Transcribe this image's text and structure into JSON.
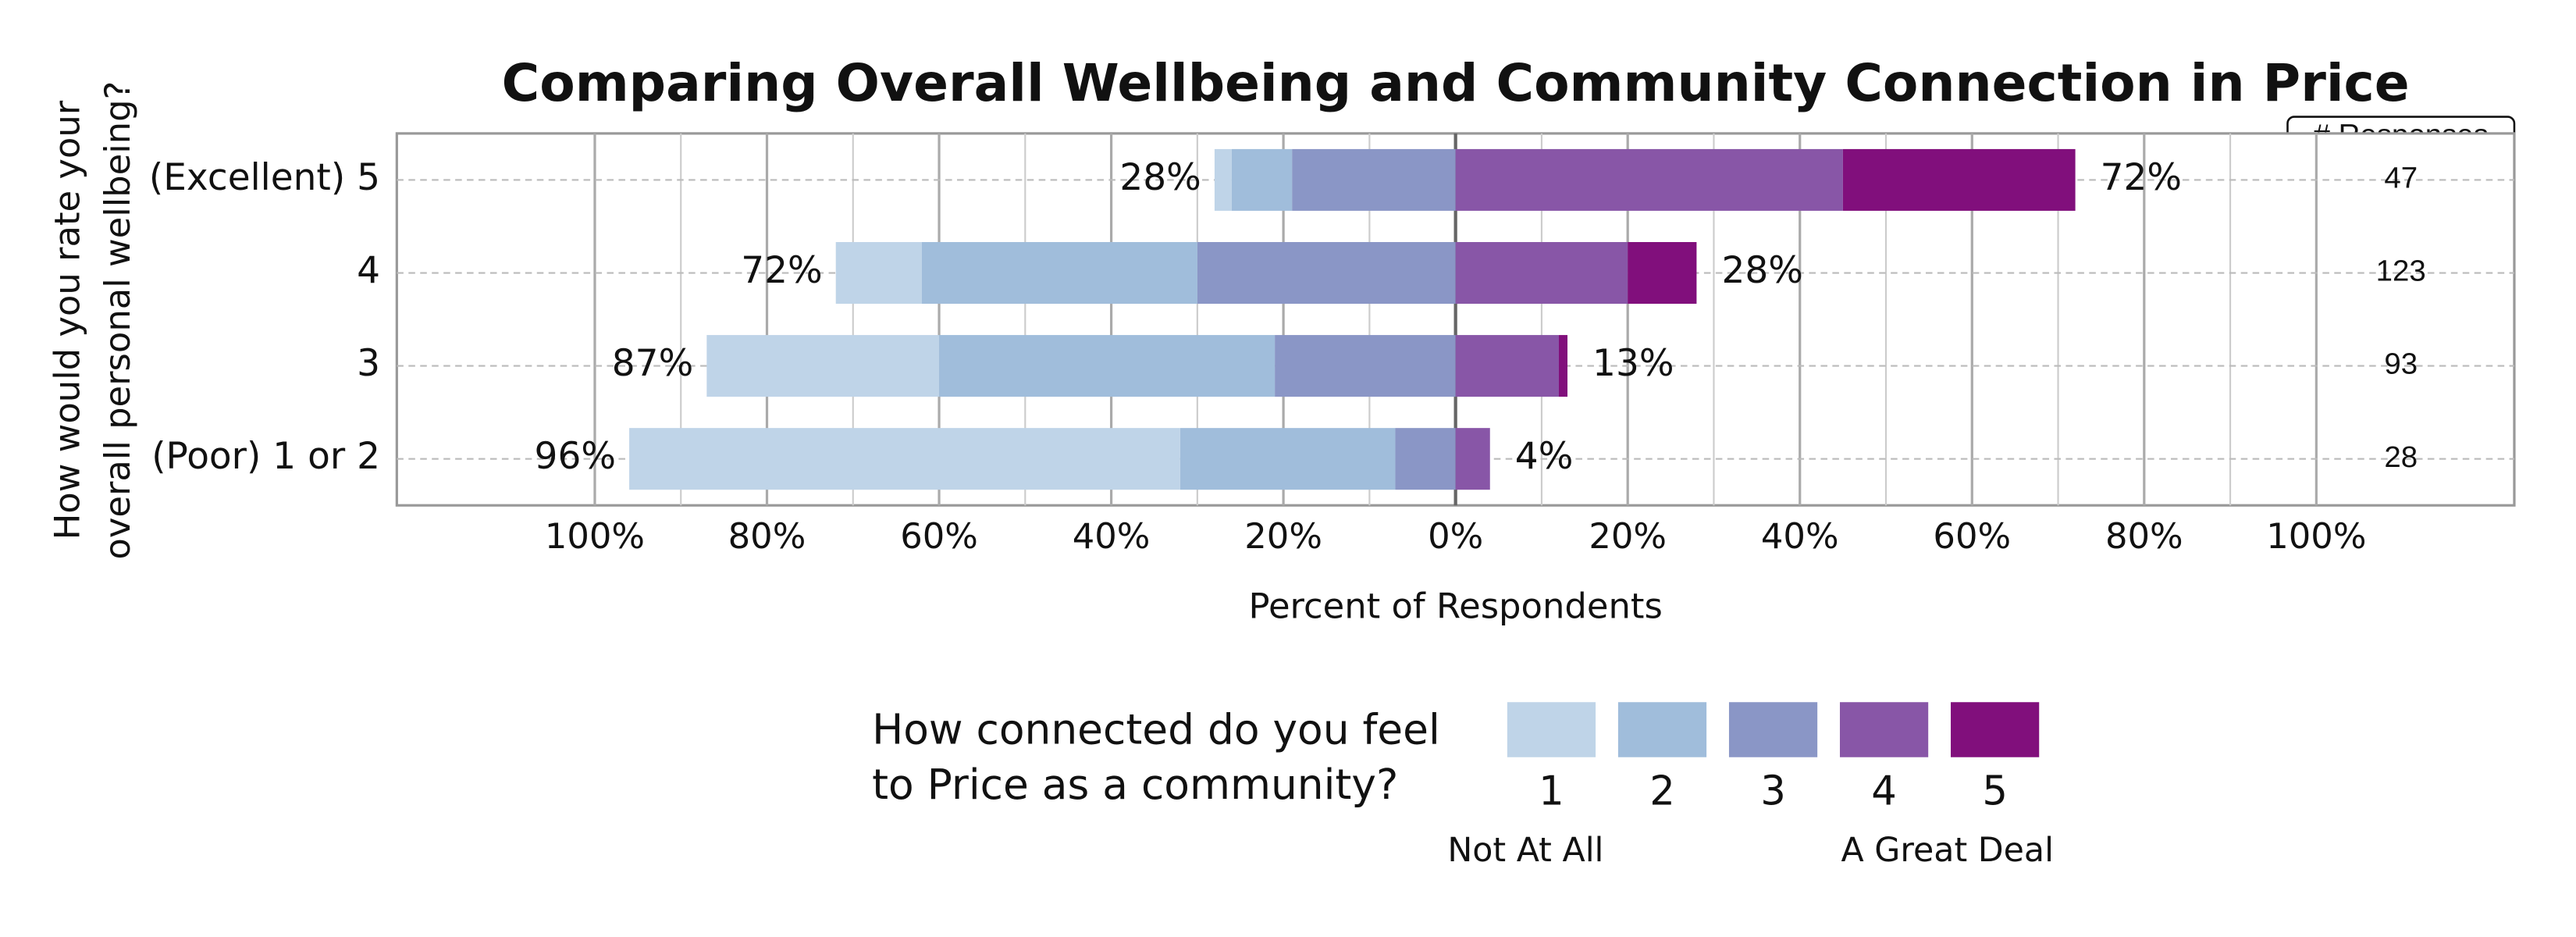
{
  "chart_data": {
    "type": "diverging-bar",
    "title": "Comparing Overall Wellbeing and Community Connection in Price",
    "x_label": "Percent of Respondents",
    "y_label": [
      "How would you rate your",
      "overall personal wellbeing?"
    ],
    "categories": [
      "(Excellent) 5",
      "4",
      "3",
      "(Poor) 1 or 2"
    ],
    "series": [
      {
        "name": "1",
        "color": "#bfd4e8",
        "values": [
          2,
          10,
          27,
          64
        ]
      },
      {
        "name": "2",
        "color": "#a0bddb",
        "values": [
          7,
          32,
          39,
          25
        ]
      },
      {
        "name": "3",
        "color": "#8a96c6",
        "values": [
          19,
          30,
          21,
          7
        ]
      },
      {
        "name": "4",
        "color": "#8856a7",
        "values": [
          45,
          20,
          12,
          4
        ]
      },
      {
        "name": "5",
        "color": "#810f7c",
        "values": [
          27,
          8,
          1,
          0
        ]
      }
    ],
    "left_total_labels": [
      "28%",
      "72%",
      "87%",
      "96%"
    ],
    "right_total_labels": [
      "72%",
      "28%",
      "13%",
      "4%"
    ],
    "responses_header": "# Responses",
    "responses": [
      47,
      123,
      93,
      28
    ],
    "xlim": [
      -123,
      123
    ],
    "xticks": [
      {
        "value": -100,
        "label": "100%"
      },
      {
        "value": -80,
        "label": "80%"
      },
      {
        "value": -60,
        "label": "60%"
      },
      {
        "value": -40,
        "label": "40%"
      },
      {
        "value": -20,
        "label": "20%"
      },
      {
        "value": 0,
        "label": "0%"
      },
      {
        "value": 20,
        "label": "20%"
      },
      {
        "value": 40,
        "label": "40%"
      },
      {
        "value": 60,
        "label": "60%"
      },
      {
        "value": 80,
        "label": "80%"
      },
      {
        "value": 100,
        "label": "100%"
      }
    ],
    "minor_xticks": [
      -90,
      -70,
      -50,
      -30,
      -10,
      10,
      30,
      50,
      70,
      90
    ],
    "grid": true,
    "legend_title": [
      "How connected do you feel",
      "to Price as a community?"
    ],
    "legend_low": "Not At All",
    "legend_high": "A Great Deal"
  }
}
